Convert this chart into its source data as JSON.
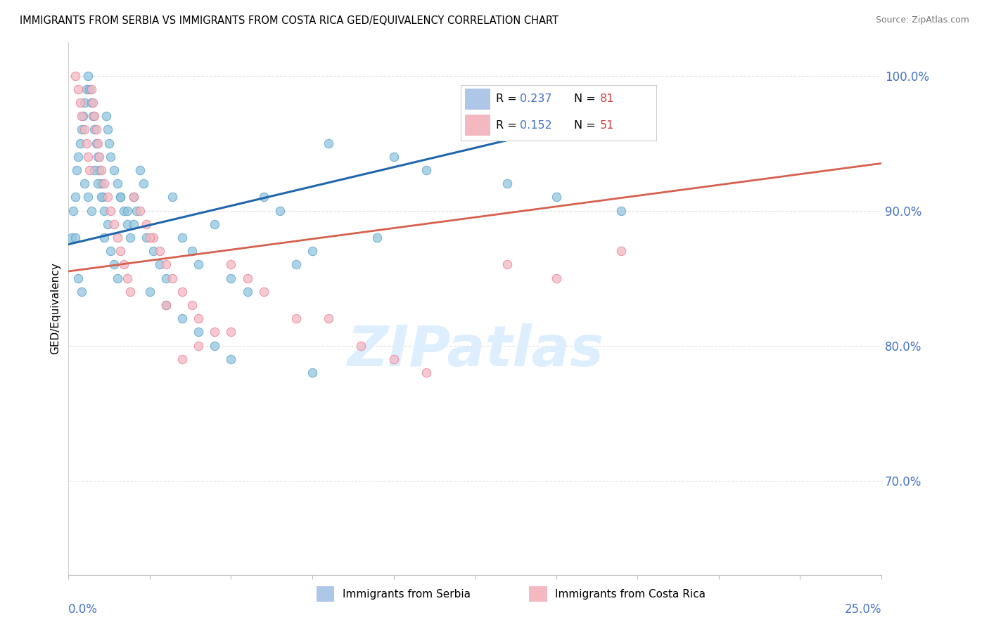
{
  "title": "IMMIGRANTS FROM SERBIA VS IMMIGRANTS FROM COSTA RICA GED/EQUIVALENCY CORRELATION CHART",
  "source": "Source: ZipAtlas.com",
  "ylabel": "GED/Equivalency",
  "xlim": [
    0.0,
    25.0
  ],
  "ylim": [
    63.0,
    102.5
  ],
  "yticks": [
    70.0,
    80.0,
    90.0,
    100.0
  ],
  "ytick_labels": [
    "70.0%",
    "80.0%",
    "90.0%",
    "100.0%"
  ],
  "serbia_R": 0.237,
  "serbia_N": 81,
  "costa_rica_R": 0.152,
  "costa_rica_N": 51,
  "serbia_color": "#92c5de",
  "serbia_edge_color": "#5ba3cc",
  "costa_rica_color": "#f4b8c1",
  "costa_rica_edge_color": "#e87f94",
  "serbia_line_color": "#2166ac",
  "costa_rica_line_color": "#d6604d",
  "legend_box_color": "#aec6e8",
  "legend_box_color2": "#f4b8c1",
  "watermark_color": "#ddeeff",
  "tick_color": "#4472c4",
  "grid_color": "#e0e0e0",
  "serbia_x": [
    0.1,
    0.15,
    0.2,
    0.25,
    0.3,
    0.35,
    0.4,
    0.45,
    0.5,
    0.55,
    0.6,
    0.65,
    0.7,
    0.75,
    0.8,
    0.85,
    0.9,
    0.95,
    1.0,
    1.05,
    1.1,
    1.15,
    1.2,
    1.25,
    1.3,
    1.4,
    1.5,
    1.6,
    1.7,
    1.8,
    1.9,
    2.0,
    2.1,
    2.2,
    2.3,
    2.4,
    2.6,
    2.8,
    3.0,
    3.2,
    3.5,
    3.8,
    4.0,
    4.5,
    5.0,
    5.5,
    6.0,
    6.5,
    7.0,
    7.5,
    0.2,
    0.3,
    0.4,
    0.5,
    0.6,
    0.7,
    0.8,
    0.9,
    1.0,
    1.1,
    1.2,
    1.3,
    1.4,
    1.5,
    1.6,
    1.8,
    2.0,
    2.5,
    3.0,
    3.5,
    4.0,
    4.5,
    5.0,
    7.5,
    10.0,
    11.0,
    13.5,
    15.0,
    17.0,
    8.0,
    9.5
  ],
  "serbia_y": [
    88,
    90,
    91,
    93,
    94,
    95,
    96,
    97,
    98,
    99,
    100,
    99,
    98,
    97,
    96,
    95,
    94,
    93,
    92,
    91,
    90,
    97,
    96,
    95,
    94,
    93,
    92,
    91,
    90,
    89,
    88,
    91,
    90,
    93,
    92,
    88,
    87,
    86,
    85,
    91,
    88,
    87,
    86,
    89,
    85,
    84,
    91,
    90,
    86,
    87,
    88,
    85,
    84,
    92,
    91,
    90,
    93,
    92,
    91,
    88,
    89,
    87,
    86,
    85,
    91,
    90,
    89,
    84,
    83,
    82,
    81,
    80,
    79,
    78,
    94,
    93,
    92,
    91,
    90,
    95,
    88
  ],
  "costa_rica_x": [
    0.2,
    0.3,
    0.35,
    0.4,
    0.5,
    0.55,
    0.6,
    0.65,
    0.7,
    0.75,
    0.8,
    0.85,
    0.9,
    0.95,
    1.0,
    1.1,
    1.2,
    1.3,
    1.4,
    1.5,
    1.6,
    1.7,
    1.8,
    1.9,
    2.0,
    2.2,
    2.4,
    2.6,
    2.8,
    3.0,
    3.2,
    3.5,
    3.8,
    4.0,
    4.5,
    5.0,
    5.5,
    6.0,
    7.0,
    8.0,
    9.0,
    10.0,
    11.0,
    13.5,
    15.0,
    17.0,
    3.0,
    3.5,
    4.0,
    5.0,
    2.5
  ],
  "costa_rica_y": [
    100,
    99,
    98,
    97,
    96,
    95,
    94,
    93,
    99,
    98,
    97,
    96,
    95,
    94,
    93,
    92,
    91,
    90,
    89,
    88,
    87,
    86,
    85,
    84,
    91,
    90,
    89,
    88,
    87,
    86,
    85,
    84,
    83,
    82,
    81,
    86,
    85,
    84,
    82,
    82,
    80,
    79,
    78,
    86,
    85,
    87,
    83,
    79,
    80,
    81,
    88
  ],
  "serbia_trend_x0": 0.0,
  "serbia_trend_y0": 87.5,
  "serbia_trend_x1": 17.5,
  "serbia_trend_y1": 97.5,
  "costa_rica_trend_x0": 0.0,
  "costa_rica_trend_y0": 85.5,
  "costa_rica_trend_x1": 25.0,
  "costa_rica_trend_y1": 93.5
}
